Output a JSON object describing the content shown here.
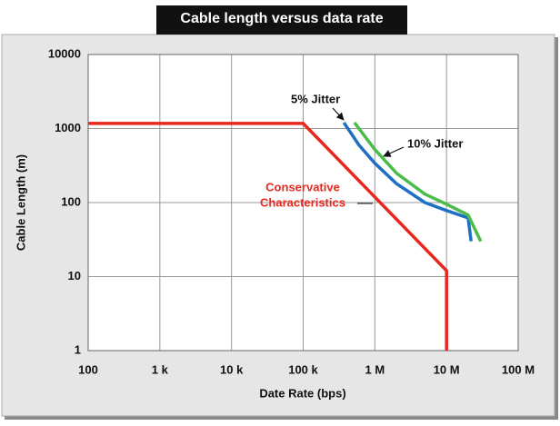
{
  "chart_data": {
    "type": "line",
    "title": "Cable length versus data rate",
    "x_label": "Date Rate (bps)",
    "y_label": "Cable Length (m)",
    "x_scale": "log",
    "y_scale": "log",
    "grid": true,
    "xlim": [
      100,
      100000000
    ],
    "ylim": [
      1,
      10000
    ],
    "xticks": [
      100,
      {
        "value": 1000,
        "label": "1 k"
      },
      {
        "value": 10000,
        "label": "10 k"
      },
      {
        "value": 100000,
        "label": "100 k"
      },
      {
        "value": 1000000,
        "label": "1 M"
      },
      {
        "value": 10000000,
        "label": "10 M"
      },
      {
        "value": 100000000,
        "label": "100 M"
      }
    ],
    "yticks": [
      1,
      10,
      100,
      1000,
      10000
    ],
    "series": [
      {
        "color": "#e8281e",
        "x": [
          100,
          100000,
          10000000,
          10000000
        ],
        "values": [
          1170,
          1170,
          12,
          1
        ]
      },
      {
        "color": "#1f6fc4",
        "x": [
          370000,
          600000,
          1000000,
          2000000,
          5000000,
          10000000,
          20000000,
          22000000
        ],
        "values": [
          1200,
          600,
          340,
          180,
          100,
          78,
          62,
          30
        ]
      },
      {
        "color": "#4cbb4c",
        "x": [
          520000,
          1000000,
          2000000,
          5000000,
          10000000,
          20000000,
          30000000
        ],
        "values": [
          1200,
          520,
          250,
          130,
          95,
          68,
          30
        ]
      }
    ],
    "annotations": [
      "5% Jitter",
      "10% Jitter",
      "Conservative",
      "Characteristics"
    ]
  }
}
